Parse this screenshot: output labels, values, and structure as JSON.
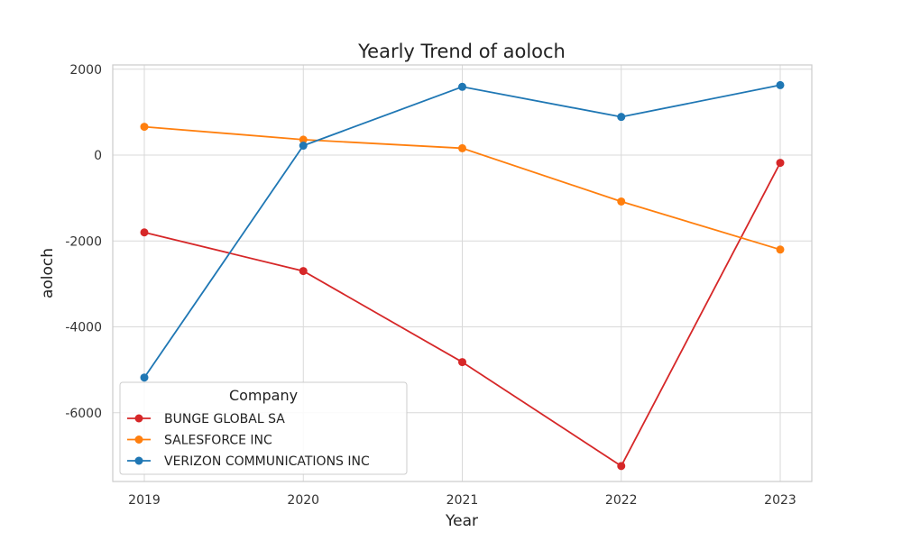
{
  "chart_data": {
    "type": "line",
    "title": "Yearly Trend of aoloch",
    "xlabel": "Year",
    "ylabel": "aoloch",
    "categories": [
      "2019",
      "2020",
      "2021",
      "2022",
      "2023"
    ],
    "ylim": [
      -7600,
      2100
    ],
    "yticks": [
      2000,
      0,
      -2000,
      -4000,
      -6000
    ],
    "grid": true,
    "legend": {
      "title": "Company",
      "placement": "lower-left"
    },
    "series": [
      {
        "name": "BUNGE GLOBAL SA",
        "color": "#d62728",
        "values": [
          -1800,
          -2700,
          -4820,
          -7240,
          -180
        ]
      },
      {
        "name": "SALESFORCE INC",
        "color": "#ff7f0e",
        "values": [
          660,
          360,
          160,
          -1080,
          -2200
        ]
      },
      {
        "name": "VERIZON COMMUNICATIONS INC",
        "color": "#1f77b4",
        "values": [
          -5180,
          220,
          1590,
          890,
          1630
        ]
      }
    ]
  }
}
